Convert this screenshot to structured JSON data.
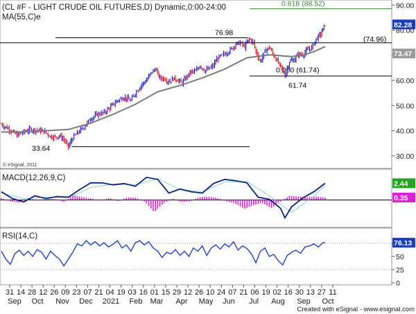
{
  "chart_data": {
    "type": "line",
    "title": "(CL #F - LIGHT CRUDE OIL FUTURES,D) Dynamic,0:00-24:00",
    "watermark": "© eSignal, 2011",
    "footer": "Created with eSignal - www.esignal.com",
    "x_axis": {
      "day_labels": [
        "31",
        "14",
        "28",
        "12",
        "26",
        "09",
        "23",
        "07",
        "21",
        "04",
        "19",
        "03",
        "16",
        "01",
        "15",
        "29",
        "12",
        "26",
        "10",
        "24",
        "07",
        "21",
        "06",
        "19",
        "02",
        "16",
        "30",
        "13",
        "27",
        "11"
      ],
      "month_labels": [
        "Sep",
        "Oct",
        "Nov",
        "Dec",
        "2021",
        "Feb",
        "Mar",
        "Apr",
        "May",
        "Jun",
        "Jul",
        "Aug",
        "Sep",
        "Oct"
      ],
      "n_bars": 300
    },
    "price_panel": {
      "ma_label": "MA(55,C)e",
      "ylim": [
        25,
        92
      ],
      "y_ticks": [
        30,
        40,
        50,
        60,
        70,
        80,
        90
      ],
      "last_price_label": "82.28",
      "ma_last_label": "73.47",
      "price_close_path": [
        [
          0,
          42.5
        ],
        [
          8,
          40.3
        ],
        [
          14,
          38.2
        ],
        [
          20,
          39.5
        ],
        [
          26,
          40.5
        ],
        [
          32,
          40.2
        ],
        [
          38,
          39.8
        ],
        [
          44,
          37.8
        ],
        [
          48,
          37.5
        ],
        [
          52,
          38.0
        ],
        [
          56,
          36.5
        ],
        [
          60,
          33.64
        ],
        [
          64,
          37.2
        ],
        [
          68,
          39.0
        ],
        [
          74,
          41.5
        ],
        [
          80,
          44.8
        ],
        [
          86,
          46.5
        ],
        [
          92,
          47.2
        ],
        [
          98,
          49.5
        ],
        [
          104,
          52.0
        ],
        [
          110,
          53.3
        ],
        [
          116,
          52.0
        ],
        [
          120,
          55.0
        ],
        [
          126,
          58.5
        ],
        [
          130,
          60.0
        ],
        [
          134,
          63.0
        ],
        [
          138,
          64.5
        ],
        [
          142,
          61.0
        ],
        [
          146,
          60.8
        ],
        [
          150,
          59.5
        ],
        [
          154,
          60.8
        ],
        [
          158,
          60.2
        ],
        [
          162,
          59.0
        ],
        [
          166,
          61.5
        ],
        [
          170,
          63.5
        ],
        [
          174,
          63.5
        ],
        [
          178,
          66.0
        ],
        [
          182,
          64.0
        ],
        [
          186,
          64.5
        ],
        [
          190,
          66.0
        ],
        [
          194,
          69.0
        ],
        [
          198,
          70.0
        ],
        [
          202,
          71.0
        ],
        [
          206,
          72.5
        ],
        [
          210,
          74.5
        ],
        [
          214,
          75.0
        ],
        [
          218,
          73.5
        ],
        [
          222,
          76.5
        ],
        [
          226,
          75.0
        ],
        [
          228,
          71.5
        ],
        [
          232,
          67.5
        ],
        [
          236,
          71.5
        ],
        [
          240,
          73.2
        ],
        [
          244,
          70.0
        ],
        [
          248,
          67.0
        ],
        [
          252,
          64.0
        ],
        [
          254,
          62.0
        ],
        [
          258,
          67.5
        ],
        [
          262,
          68.0
        ],
        [
          266,
          70.5
        ],
        [
          270,
          70.2
        ],
        [
          274,
          72.0
        ],
        [
          278,
          73.0
        ],
        [
          282,
          76.5
        ],
        [
          286,
          78.5
        ],
        [
          290,
          82.28
        ]
      ],
      "ma55_path": [
        [
          0,
          39.5
        ],
        [
          20,
          39.5
        ],
        [
          40,
          40.0
        ],
        [
          60,
          40.5
        ],
        [
          80,
          43.0
        ],
        [
          100,
          46.5
        ],
        [
          120,
          50.5
        ],
        [
          140,
          55.5
        ],
        [
          160,
          58.0
        ],
        [
          180,
          61.0
        ],
        [
          200,
          64.5
        ],
        [
          220,
          69.0
        ],
        [
          240,
          70.2
        ],
        [
          260,
          69.5
        ],
        [
          270,
          70.0
        ],
        [
          280,
          71.5
        ],
        [
          290,
          73.47
        ]
      ],
      "fib_levels": [
        {
          "label": "0.618 (88.52)",
          "value": 88.52,
          "color": "#2e8b2e"
        },
        {
          "label": "(74.96)",
          "value": 74.96,
          "color": "#000000"
        },
        {
          "label": "0.000 (61.74)",
          "value": 61.74,
          "color": "#000000"
        }
      ],
      "swing_labels": [
        {
          "label": "76.98",
          "value": 76.98
        },
        {
          "label": "61.74",
          "value": 61.74
        },
        {
          "label": "33.64",
          "value": 33.64
        }
      ],
      "support_33_value": 33.64
    },
    "macd_panel": {
      "label": "MACD(12,26,9,C)",
      "ylim": [
        -4,
        4.5
      ],
      "y_ticks": [],
      "last_macd_label": "2.44",
      "last_hist_label": "0.35",
      "macd_path": [
        [
          0,
          1.2
        ],
        [
          10,
          0.2
        ],
        [
          20,
          -0.3
        ],
        [
          30,
          0.6
        ],
        [
          40,
          0.2
        ],
        [
          50,
          0.5
        ],
        [
          60,
          0.4
        ],
        [
          70,
          1.5
        ],
        [
          80,
          2.5
        ],
        [
          90,
          2.5
        ],
        [
          100,
          2.2
        ],
        [
          110,
          2.4
        ],
        [
          120,
          2.0
        ],
        [
          130,
          3.3
        ],
        [
          140,
          3.0
        ],
        [
          150,
          1.0
        ],
        [
          160,
          1.6
        ],
        [
          170,
          1.2
        ],
        [
          180,
          1.0
        ],
        [
          190,
          2.4
        ],
        [
          200,
          3.0
        ],
        [
          210,
          2.8
        ],
        [
          220,
          2.5
        ],
        [
          230,
          0.4
        ],
        [
          240,
          0.1
        ],
        [
          250,
          -1.2
        ],
        [
          254,
          -2.6
        ],
        [
          260,
          -1.0
        ],
        [
          270,
          0.3
        ],
        [
          280,
          1.2
        ],
        [
          290,
          2.44
        ]
      ],
      "signal_path": [
        [
          0,
          1.0
        ],
        [
          20,
          0.2
        ],
        [
          40,
          0.4
        ],
        [
          60,
          0.3
        ],
        [
          80,
          1.8
        ],
        [
          100,
          2.3
        ],
        [
          120,
          2.2
        ],
        [
          140,
          3.1
        ],
        [
          160,
          1.5
        ],
        [
          180,
          1.2
        ],
        [
          200,
          2.6
        ],
        [
          220,
          2.7
        ],
        [
          240,
          0.6
        ],
        [
          260,
          -1.8
        ],
        [
          280,
          0.6
        ],
        [
          290,
          2.1
        ]
      ],
      "histogram": [
        0.3,
        -0.2,
        -0.4,
        0.3,
        -0.1,
        0.2,
        0.1,
        -0.3,
        0.7,
        0.4,
        0.2,
        -0.1,
        0.3,
        -0.2,
        0.4,
        0.3,
        -0.3,
        -1.8,
        -0.5,
        0.2,
        -0.3,
        -0.2,
        0.4,
        0.5,
        0.3,
        -0.2,
        -0.5,
        -1.3,
        -0.8,
        -0.4,
        -1.2,
        -0.3,
        0.6,
        0.5,
        0.4,
        0.5,
        0.35
      ]
    },
    "rsi_panel": {
      "label": "RSI(14,C)",
      "ylim": [
        0,
        100
      ],
      "y_ticks": [
        0,
        25,
        50,
        75
      ],
      "last_rsi_label": "76.13",
      "rsi_path": [
        [
          0,
          60
        ],
        [
          4,
          45
        ],
        [
          8,
          35
        ],
        [
          12,
          55
        ],
        [
          16,
          62
        ],
        [
          20,
          52
        ],
        [
          24,
          60
        ],
        [
          28,
          50
        ],
        [
          32,
          63
        ],
        [
          36,
          58
        ],
        [
          40,
          45
        ],
        [
          44,
          60
        ],
        [
          48,
          52
        ],
        [
          52,
          45
        ],
        [
          56,
          32
        ],
        [
          60,
          45
        ],
        [
          64,
          58
        ],
        [
          68,
          74
        ],
        [
          72,
          70
        ],
        [
          76,
          80
        ],
        [
          80,
          72
        ],
        [
          84,
          78
        ],
        [
          88,
          70
        ],
        [
          92,
          76
        ],
        [
          96,
          68
        ],
        [
          100,
          73
        ],
        [
          104,
          80
        ],
        [
          108,
          66
        ],
        [
          112,
          72
        ],
        [
          116,
          60
        ],
        [
          120,
          76
        ],
        [
          124,
          80
        ],
        [
          128,
          72
        ],
        [
          132,
          78
        ],
        [
          136,
          66
        ],
        [
          140,
          60
        ],
        [
          144,
          48
        ],
        [
          148,
          58
        ],
        [
          152,
          55
        ],
        [
          156,
          63
        ],
        [
          160,
          52
        ],
        [
          164,
          60
        ],
        [
          168,
          50
        ],
        [
          172,
          66
        ],
        [
          176,
          60
        ],
        [
          180,
          70
        ],
        [
          184,
          52
        ],
        [
          188,
          66
        ],
        [
          192,
          72
        ],
        [
          196,
          64
        ],
        [
          200,
          74
        ],
        [
          204,
          68
        ],
        [
          208,
          78
        ],
        [
          212,
          62
        ],
        [
          216,
          70
        ],
        [
          220,
          65
        ],
        [
          224,
          55
        ],
        [
          228,
          38
        ],
        [
          232,
          60
        ],
        [
          236,
          66
        ],
        [
          240,
          50
        ],
        [
          244,
          54
        ],
        [
          248,
          42
        ],
        [
          252,
          34
        ],
        [
          256,
          52
        ],
        [
          260,
          58
        ],
        [
          264,
          62
        ],
        [
          268,
          56
        ],
        [
          272,
          68
        ],
        [
          276,
          70
        ],
        [
          280,
          74
        ],
        [
          284,
          68
        ],
        [
          288,
          76.13
        ],
        [
          290,
          76.13
        ]
      ]
    }
  }
}
